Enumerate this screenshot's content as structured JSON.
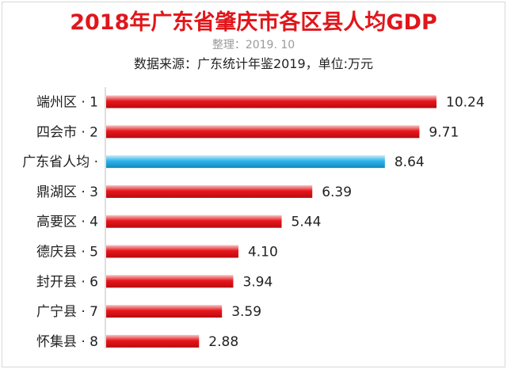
{
  "chart_data": {
    "type": "bar",
    "orientation": "horizontal",
    "title": "2018年广东省肇庆市各区县人均GDP",
    "subtitle": "整理：2019. 10",
    "source": "数据来源：广东统计年鉴2019，单位:万元",
    "categories": [
      "端州区 · 1",
      "四会市 · 2",
      "广东省人均 ·",
      "鼎湖区 · 3",
      "高要区 · 4",
      "德庆县 · 5",
      "封开县 · 6",
      "广宁县 · 7",
      "怀集县 · 8"
    ],
    "values": [
      10.24,
      9.71,
      8.64,
      6.39,
      5.44,
      4.1,
      3.94,
      3.59,
      2.88
    ],
    "value_labels": [
      "10.24",
      "9.71",
      "8.64",
      "6.39",
      "5.44",
      "4.10",
      "3.94",
      "3.59",
      "2.88"
    ],
    "highlight_index": 2,
    "xlim": [
      0,
      10.24
    ],
    "colors": {
      "bar": "#e8161b",
      "highlight": "#2bb5ea",
      "title": "#e0161b"
    },
    "grid": false,
    "legend": "none"
  }
}
